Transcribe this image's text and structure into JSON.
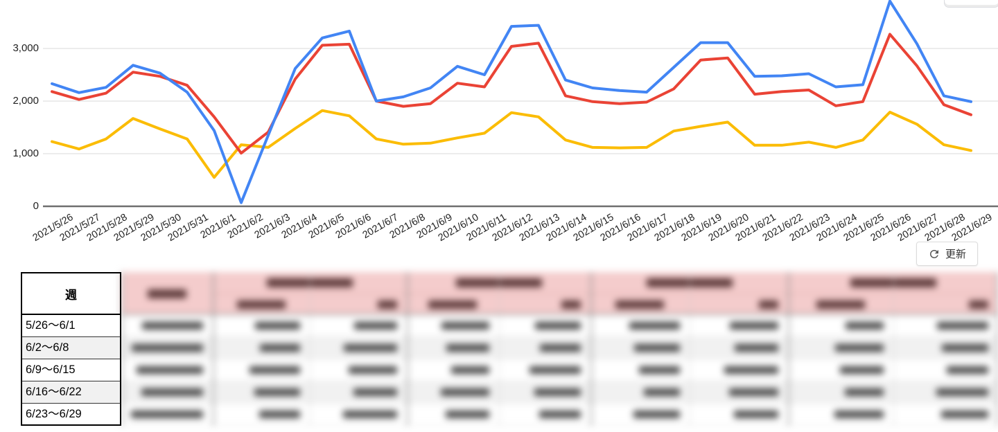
{
  "chart_data": {
    "type": "line",
    "x": [
      "2021/5/26",
      "2021/5/27",
      "2021/5/28",
      "2021/5/29",
      "2021/5/30",
      "2021/5/31",
      "2021/6/1",
      "2021/6/2",
      "2021/6/3",
      "2021/6/4",
      "2021/6/5",
      "2021/6/6",
      "2021/6/7",
      "2021/6/8",
      "2021/6/9",
      "2021/6/10",
      "2021/6/11",
      "2021/6/12",
      "2021/6/13",
      "2021/6/14",
      "2021/6/15",
      "2021/6/16",
      "2021/6/17",
      "2021/6/18",
      "2021/6/19",
      "2021/6/20",
      "2021/6/21",
      "2021/6/22",
      "2021/6/23",
      "2021/6/24",
      "2021/6/25",
      "2021/6/26",
      "2021/6/27",
      "2021/6/28",
      "2021/6/29"
    ],
    "series": [
      {
        "name": "blue-series",
        "color": "#4285f4",
        "values": [
          2330,
          2160,
          2260,
          2680,
          2530,
          2170,
          1440,
          70,
          1350,
          2620,
          3200,
          3330,
          2000,
          2080,
          2250,
          2660,
          2500,
          3420,
          3440,
          2400,
          2250,
          2200,
          2170,
          2640,
          3110,
          3110,
          2470,
          2480,
          2520,
          2270,
          2310,
          3900,
          3090,
          2100,
          1990
        ]
      },
      {
        "name": "red-series",
        "color": "#ea4335",
        "values": [
          2180,
          2030,
          2150,
          2550,
          2470,
          2300,
          1700,
          1010,
          1410,
          2420,
          3060,
          3080,
          2000,
          1900,
          1950,
          2340,
          2270,
          3040,
          3100,
          2100,
          1990,
          1950,
          1980,
          2230,
          2780,
          2820,
          2130,
          2180,
          2210,
          1910,
          1990,
          3270,
          2670,
          1930,
          1740
        ]
      },
      {
        "name": "yellow-series",
        "color": "#fbbc04",
        "values": [
          1230,
          1090,
          1280,
          1670,
          1470,
          1280,
          550,
          1170,
          1120,
          1480,
          1820,
          1720,
          1280,
          1180,
          1200,
          1300,
          1390,
          1780,
          1700,
          1260,
          1120,
          1110,
          1120,
          1430,
          1520,
          1600,
          1160,
          1160,
          1220,
          1120,
          1260,
          1790,
          1560,
          1170,
          1060
        ]
      }
    ],
    "title": "",
    "xlabel": "",
    "ylabel": "",
    "ylim": [
      0,
      3900
    ],
    "y_ticks": [
      0,
      1000,
      2000,
      3000
    ],
    "y_tick_labels": [
      "0",
      "1,000",
      "2,000",
      "3,000"
    ],
    "grid": true,
    "x_labels_rotated": true
  },
  "refresh_button": {
    "label": "更新"
  },
  "table": {
    "week_column": {
      "header": "週",
      "rows": [
        "5/26〜6/1",
        "6/2〜6/8",
        "6/9〜6/15",
        "6/16〜6/22",
        "6/23〜6/29"
      ]
    },
    "blurred_area": {
      "redacted": true,
      "single_columns": 1,
      "column_groups": 4,
      "subcolumns_per_group": 2,
      "data_rows": 5
    }
  },
  "colors": {
    "grid_line": "#e6e6e6",
    "axis_line": "#6e6e6e",
    "table_header_pink": "#f4cccc",
    "row_alt_gray": "#f1f1f1",
    "button_border": "#dcdcdc",
    "icon_gray": "#555555"
  }
}
